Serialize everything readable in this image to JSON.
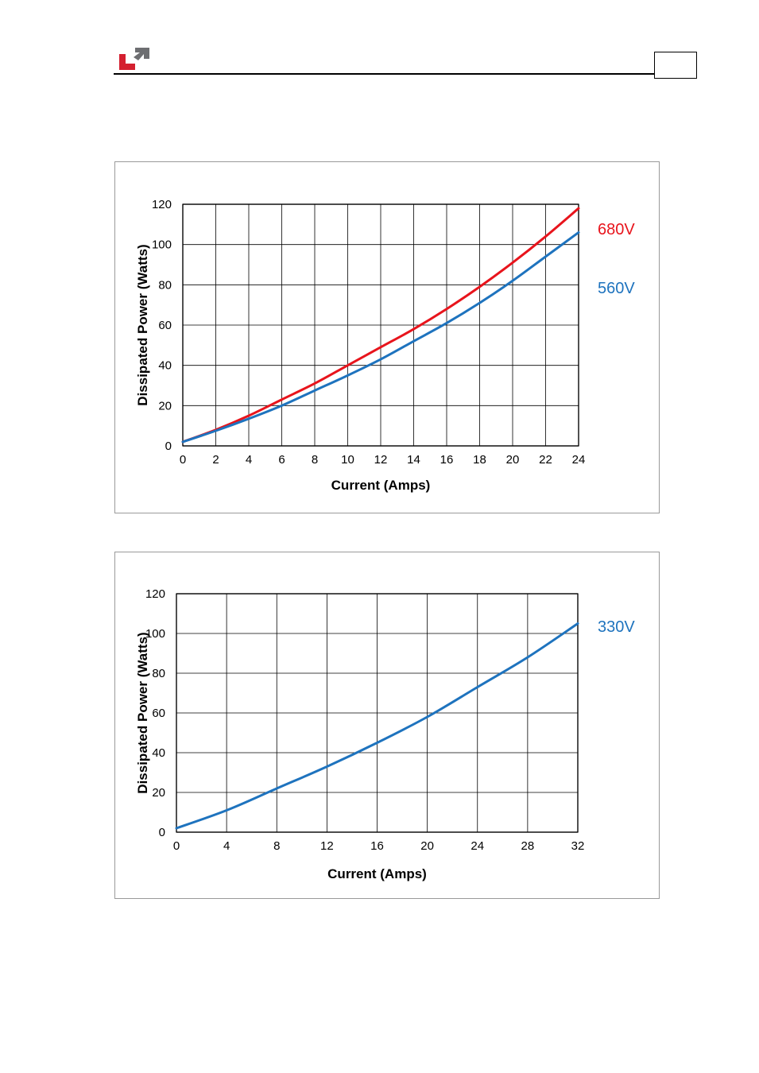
{
  "header": {
    "page_number": ""
  },
  "colors": {
    "red_series": "#e8141c",
    "blue_series": "#1e73be",
    "grid": "#000000",
    "logo_red": "#d42030",
    "logo_gray": "#6d6e71"
  },
  "chart_data": [
    {
      "type": "line",
      "xlabel": "Current (Amps)",
      "ylabel": "Dissipated Power (Watts)",
      "xlim": [
        0,
        24
      ],
      "ylim": [
        0,
        120
      ],
      "x_ticks": [
        "0",
        "2",
        "4",
        "6",
        "8",
        "10",
        "12",
        "14",
        "16",
        "18",
        "20",
        "22",
        "24"
      ],
      "y_ticks": [
        "0",
        "20",
        "40",
        "60",
        "80",
        "100",
        "120"
      ],
      "grid": true,
      "series": [
        {
          "name": "680V",
          "color": "#e8141c",
          "x": [
            0,
            2,
            4,
            6,
            8,
            10,
            12,
            14,
            16,
            18,
            20,
            22,
            24
          ],
          "y": [
            2,
            8,
            15,
            23,
            31,
            40,
            49,
            58,
            68,
            79,
            91,
            104,
            118
          ]
        },
        {
          "name": "560V",
          "color": "#1e73be",
          "x": [
            0,
            2,
            4,
            6,
            8,
            10,
            12,
            14,
            16,
            18,
            20,
            22,
            24
          ],
          "y": [
            2,
            7.5,
            13.5,
            20,
            27.5,
            35,
            43,
            52,
            61,
            71,
            82,
            94,
            106
          ]
        }
      ]
    },
    {
      "type": "line",
      "xlabel": "Current (Amps)",
      "ylabel": "Dissipated Power (Watts)",
      "xlim": [
        0,
        32
      ],
      "ylim": [
        0,
        120
      ],
      "x_ticks": [
        "0",
        "4",
        "8",
        "12",
        "16",
        "20",
        "24",
        "28",
        "32"
      ],
      "y_ticks": [
        "0",
        "20",
        "40",
        "60",
        "80",
        "100",
        "120"
      ],
      "grid": true,
      "series": [
        {
          "name": "330V",
          "color": "#1e73be",
          "x": [
            0,
            4,
            8,
            12,
            16,
            20,
            24,
            28,
            32
          ],
          "y": [
            2,
            11,
            22,
            33,
            45,
            58,
            73,
            88,
            105
          ]
        }
      ]
    }
  ]
}
